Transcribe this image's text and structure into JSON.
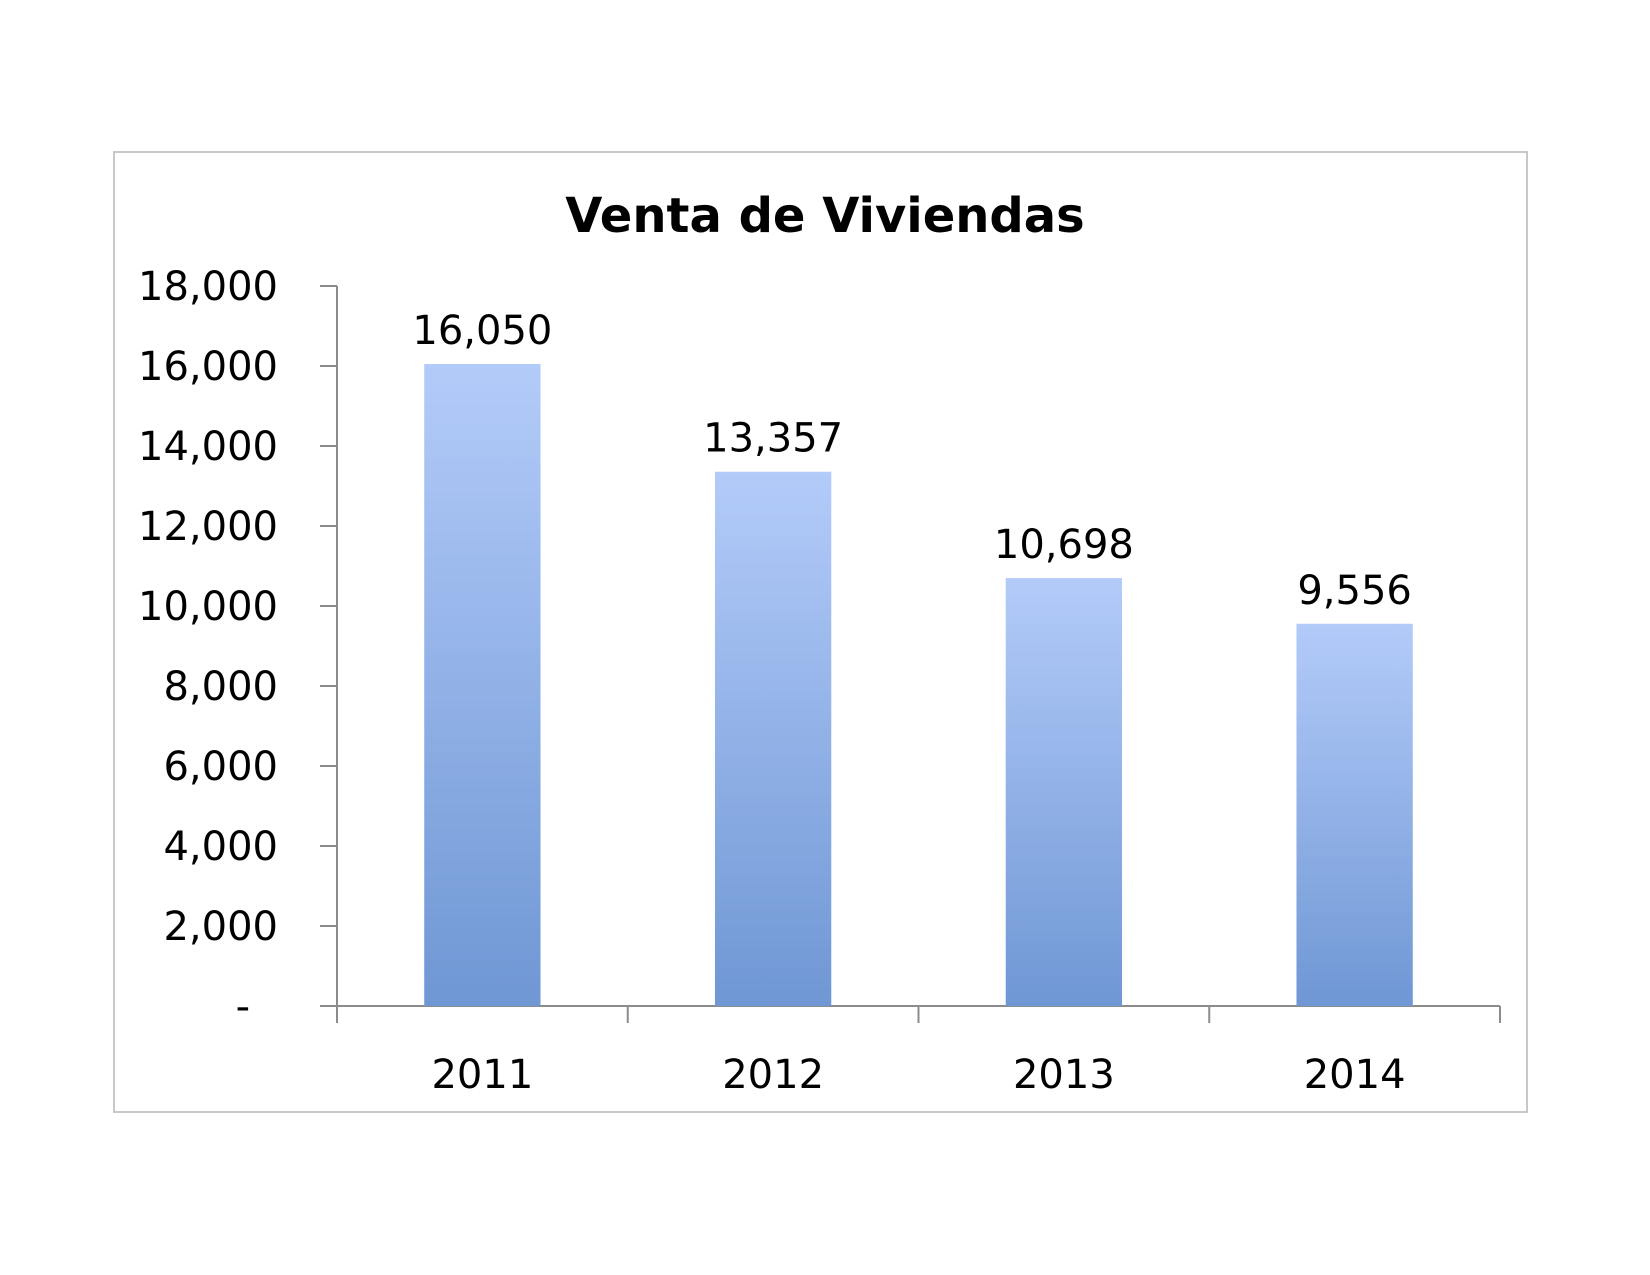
{
  "chart_data": {
    "type": "bar",
    "title": "Venta de Viviendas",
    "categories": [
      "2011",
      "2012",
      "2013",
      "2014"
    ],
    "values": [
      16050,
      13357,
      10698,
      9556
    ],
    "data_labels": [
      "16,050",
      "13,357",
      "10,698",
      "9,556"
    ],
    "ylim": [
      0,
      18000
    ],
    "y_ticks": [
      0,
      2000,
      4000,
      6000,
      8000,
      10000,
      12000,
      14000,
      16000,
      18000
    ],
    "y_tick_labels": [
      "-",
      "2,000",
      "4,000",
      "6,000",
      "8,000",
      "10,000",
      "12,000",
      "14,000",
      "16,000",
      "18,000"
    ],
    "xlabel": "",
    "ylabel": "",
    "grid": false,
    "legend": "none",
    "colors": {
      "bar_top": "#b3cbf9",
      "bar_bottom": "#6f97d4",
      "axis": "#8c8c8c",
      "border": "#c8c8c8"
    }
  }
}
